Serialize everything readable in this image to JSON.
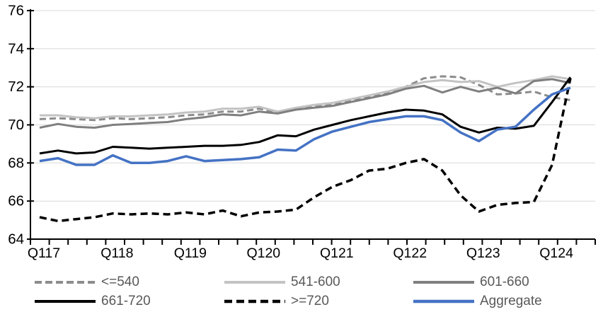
{
  "figure": {
    "kind": "embedded-line-chart",
    "background": "#ffffff"
  },
  "chart_data": {
    "type": "line",
    "title": "",
    "xlabel": "",
    "ylabel": "",
    "x_axis": {
      "labels": [
        "Q117",
        "Q118",
        "Q119",
        "Q120",
        "Q121",
        "Q122",
        "Q123",
        "Q124"
      ],
      "label_every_n_points": 4,
      "n_points": 30,
      "tick_count": 31,
      "ticks_between_points": true
    },
    "y_axis": {
      "min": 64,
      "max": 76,
      "tick_step": 2,
      "tick_labels": [
        "64",
        "66",
        "68",
        "70",
        "72",
        "74",
        "76"
      ]
    },
    "grid": "horizontal",
    "legend_position": "bottom",
    "legend": {
      "rows": 2,
      "items_per_row": 3
    },
    "colors": {
      "gridline": "#d9d9d9",
      "axis": "#000000",
      "tick_label": "#000000",
      "legend_text": "#595959"
    },
    "series": [
      {
        "name": "<=540",
        "color": "#8c8c8c",
        "style": "dashed",
        "width": 3,
        "values": [
          70.3,
          70.35,
          70.3,
          70.25,
          70.35,
          70.3,
          70.35,
          70.4,
          70.5,
          70.55,
          70.7,
          70.7,
          70.85,
          70.65,
          70.85,
          71.0,
          71.1,
          71.3,
          71.5,
          71.7,
          72.0,
          72.45,
          72.55,
          72.5,
          72.1,
          71.6,
          71.65,
          71.75,
          71.45,
          71.3
        ]
      },
      {
        "name": "541-600",
        "color": "#c3c3c3",
        "style": "solid",
        "width": 3,
        "values": [
          70.5,
          70.5,
          70.4,
          70.35,
          70.45,
          70.45,
          70.5,
          70.55,
          70.65,
          70.7,
          70.85,
          70.85,
          70.95,
          70.7,
          70.9,
          71.05,
          71.15,
          71.35,
          71.55,
          71.75,
          72.0,
          72.25,
          72.35,
          72.25,
          72.3,
          72.0,
          72.2,
          72.35,
          72.55,
          72.4
        ]
      },
      {
        "name": "601-660",
        "color": "#7f7f7f",
        "style": "solid",
        "width": 3,
        "values": [
          69.85,
          70.05,
          69.9,
          69.85,
          70.0,
          70.05,
          70.1,
          70.15,
          70.3,
          70.4,
          70.55,
          70.5,
          70.7,
          70.6,
          70.8,
          70.9,
          71.0,
          71.2,
          71.4,
          71.6,
          71.9,
          72.05,
          71.7,
          72.0,
          71.75,
          71.95,
          71.65,
          72.3,
          72.4,
          72.2
        ]
      },
      {
        "name": "661-720",
        "color": "#000000",
        "style": "solid",
        "width": 3,
        "values": [
          68.5,
          68.65,
          68.5,
          68.55,
          68.85,
          68.8,
          68.75,
          68.8,
          68.85,
          68.9,
          68.9,
          68.95,
          69.1,
          69.45,
          69.4,
          69.75,
          70.0,
          70.25,
          70.45,
          70.65,
          70.8,
          70.75,
          70.55,
          69.9,
          69.6,
          69.85,
          69.8,
          69.95,
          71.2,
          72.5
        ]
      },
      {
        "name": ">=720",
        "color": "#000000",
        "style": "dashed",
        "width": 3.5,
        "values": [
          65.15,
          64.95,
          65.05,
          65.15,
          65.35,
          65.3,
          65.35,
          65.3,
          65.4,
          65.3,
          65.5,
          65.2,
          65.4,
          65.45,
          65.55,
          66.2,
          66.75,
          67.1,
          67.6,
          67.7,
          68.0,
          68.2,
          67.6,
          66.3,
          65.45,
          65.8,
          65.9,
          65.95,
          67.9,
          72.45
        ]
      },
      {
        "name": "Aggregate",
        "color": "#4472c4",
        "style": "solid",
        "width": 3.5,
        "values": [
          68.1,
          68.25,
          67.9,
          67.9,
          68.4,
          68.0,
          68.0,
          68.1,
          68.35,
          68.1,
          68.15,
          68.2,
          68.3,
          68.7,
          68.65,
          69.25,
          69.65,
          69.9,
          70.15,
          70.3,
          70.45,
          70.45,
          70.25,
          69.6,
          69.15,
          69.75,
          69.9,
          70.8,
          71.6,
          71.95
        ]
      }
    ]
  }
}
